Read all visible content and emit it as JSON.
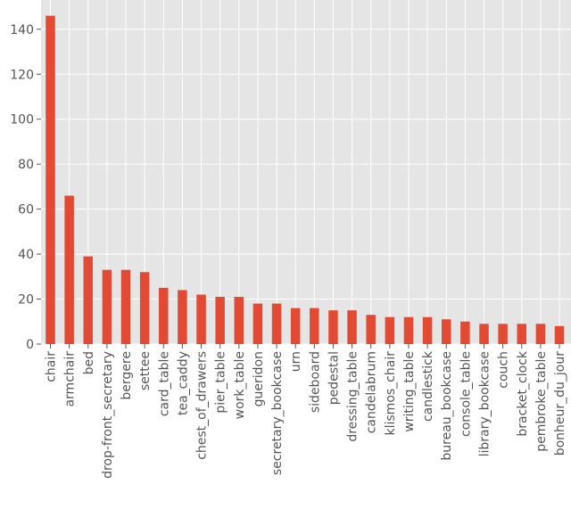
{
  "chart_data": {
    "type": "bar",
    "title": "",
    "xlabel": "",
    "ylabel": "",
    "grid": true,
    "ylim": [
      0,
      153
    ],
    "yticks": [
      0,
      20,
      40,
      60,
      80,
      100,
      120,
      140
    ],
    "colors": {
      "bar": "#e24a33",
      "plot_background": "#e5e5e5",
      "grid": "#ffffff",
      "tick_text": "#555555"
    },
    "categories": [
      "chair",
      "armchair",
      "bed",
      "drop-front_secretary",
      "bergere",
      "settee",
      "card_table",
      "tea_caddy",
      "chest_of_drawers",
      "pier_table",
      "work_table",
      "gueridon",
      "secretary_bookcase",
      "urn",
      "sideboard",
      "pedestal",
      "dressing_table",
      "candelabrum",
      "klismos_chair",
      "writing_table",
      "candlestick",
      "bureau_bookcase",
      "console_table",
      "library_bookcase",
      "couch",
      "bracket_clock",
      "pembroke_table",
      "bonheur_du_jour"
    ],
    "values": [
      146,
      66,
      39,
      33,
      33,
      32,
      25,
      24,
      22,
      21,
      21,
      18,
      18,
      16,
      16,
      15,
      15,
      13,
      12,
      12,
      12,
      11,
      10,
      9,
      9,
      9,
      9,
      8
    ]
  }
}
